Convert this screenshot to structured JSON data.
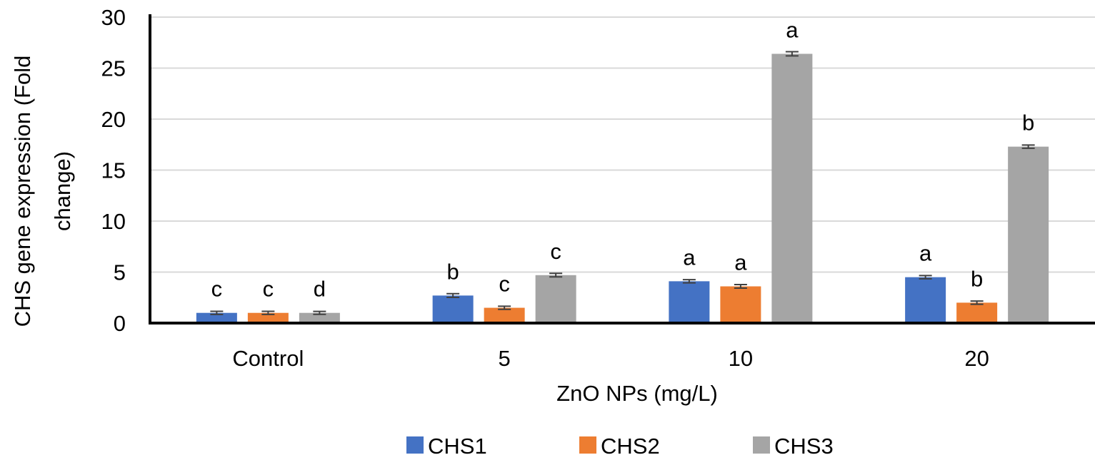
{
  "chart_data": {
    "type": "bar",
    "title": "",
    "xlabel": "ZnO NPs (mg/L)",
    "ylabel": [
      "CHS gene expression (Fold",
      "change)"
    ],
    "ylim": [
      0,
      30
    ],
    "yticks": [
      0,
      5,
      10,
      15,
      20,
      25,
      30
    ],
    "grid": true,
    "legend_position": "bottom",
    "categories": [
      "Control",
      "5",
      "10",
      "20"
    ],
    "series": [
      {
        "name": "CHS1",
        "color": "#4472C4",
        "values": [
          1.0,
          2.7,
          4.1,
          4.5
        ],
        "errors": [
          0.05,
          0.08,
          0.05,
          0.05
        ],
        "labels": [
          "c",
          "b",
          "a",
          "a"
        ]
      },
      {
        "name": "CHS2",
        "color": "#ED7D31",
        "values": [
          1.0,
          1.5,
          3.6,
          2.0
        ],
        "errors": [
          0.05,
          0.05,
          0.07,
          0.05
        ],
        "labels": [
          "c",
          "c",
          "a",
          "b"
        ]
      },
      {
        "name": "CHS3",
        "color": "#A5A5A5",
        "values": [
          1.0,
          4.7,
          26.4,
          17.3
        ],
        "errors": [
          0.04,
          0.07,
          0.1,
          0.05
        ],
        "labels": [
          "d",
          "c",
          "a",
          "b"
        ]
      }
    ]
  }
}
